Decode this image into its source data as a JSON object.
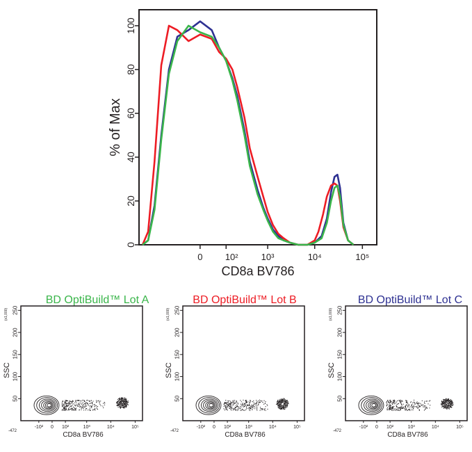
{
  "colors": {
    "lot_a": "#3ab54a",
    "lot_b": "#ed1c24",
    "lot_c": "#2e3192",
    "axis": "#231f20",
    "contour": "#231f20"
  },
  "chart_data": [
    {
      "type": "line",
      "subtype": "histogram-overlay",
      "title": "",
      "xlabel": "CD8a BV786",
      "ylabel": "% of Max",
      "x_scale": "biexponential",
      "x_ticks": [
        "0",
        "10²",
        "10³",
        "10⁴",
        "10⁵"
      ],
      "x_tick_values": [
        0,
        100,
        1000,
        10000,
        100000
      ],
      "y_ticks": [
        "0",
        "20",
        "40",
        "60",
        "80",
        "100"
      ],
      "y_tick_values": [
        0,
        20,
        40,
        60,
        80,
        100
      ],
      "ylim": [
        0,
        100
      ],
      "grid": false,
      "legend": "none",
      "series": [
        {
          "color_key": "lot_c",
          "x": [
            -600,
            -450,
            -320,
            -220,
            -140,
            -80,
            -30,
            0,
            30,
            60,
            100,
            150,
            200,
            300,
            400,
            600,
            800,
            1000,
            1300,
            1700,
            2200,
            3000,
            4500,
            7000,
            10000,
            14000,
            18000,
            22000,
            26000,
            30000,
            34000,
            40000,
            50000,
            65000
          ],
          "y": [
            0,
            2,
            18,
            50,
            80,
            95,
            98,
            102,
            98,
            90,
            84,
            76,
            68,
            52,
            38,
            25,
            17,
            12,
            7,
            4,
            2,
            1,
            0,
            0,
            1,
            4,
            12,
            24,
            31,
            32,
            26,
            10,
            2,
            0
          ]
        },
        {
          "color_key": "lot_b",
          "x": [
            -600,
            -450,
            -320,
            -220,
            -140,
            -80,
            -30,
            0,
            30,
            60,
            100,
            150,
            200,
            300,
            400,
            600,
            800,
            1000,
            1300,
            1700,
            2200,
            3000,
            4500,
            7000,
            10000,
            12000,
            15000,
            18000,
            22000,
            26000,
            30000,
            34000,
            40000,
            50000,
            65000
          ],
          "y": [
            0,
            6,
            38,
            82,
            100,
            98,
            93,
            96,
            94,
            88,
            85,
            80,
            72,
            58,
            44,
            31,
            22,
            15,
            9,
            5,
            3,
            1,
            0,
            0,
            2,
            6,
            14,
            22,
            27,
            28,
            27,
            20,
            8,
            2,
            0
          ]
        },
        {
          "color_key": "lot_a",
          "x": [
            -600,
            -450,
            -320,
            -220,
            -140,
            -80,
            -30,
            0,
            30,
            60,
            100,
            150,
            200,
            300,
            400,
            600,
            800,
            1000,
            1300,
            1700,
            2200,
            3000,
            4500,
            7000,
            10000,
            14000,
            18000,
            22000,
            26000,
            30000,
            34000,
            40000,
            50000,
            65000
          ],
          "y": [
            0,
            2,
            16,
            48,
            78,
            93,
            100,
            97,
            95,
            90,
            84,
            75,
            66,
            50,
            36,
            23,
            16,
            11,
            6,
            3,
            2,
            1,
            0,
            0,
            1,
            3,
            10,
            20,
            26,
            27,
            22,
            9,
            2,
            0
          ]
        }
      ]
    },
    {
      "type": "contour",
      "title": "BD OptiBuild™ Lot A",
      "title_color_key": "lot_a",
      "xlabel": "CD8a BV786",
      "ylabel": "SSC",
      "y_multiplier": "(x1,000)",
      "x_ticks": [
        "-472",
        "-10²",
        "0",
        "10²",
        "10³",
        "10⁴",
        "10⁵"
      ],
      "y_ticks": [
        "50",
        "100",
        "150",
        "200",
        "250"
      ],
      "y_tick_values": [
        50,
        100,
        150,
        200,
        250
      ],
      "ylim": [
        0,
        260
      ],
      "populations": [
        {
          "x": 0,
          "y": 35
        },
        {
          "x": 30000,
          "y": 40
        }
      ]
    },
    {
      "type": "contour",
      "title": "BD OptiBuild™ Lot B",
      "title_color_key": "lot_b",
      "xlabel": "CD8a BV786",
      "ylabel": "SSC",
      "y_multiplier": "(x1,000)",
      "x_ticks": [
        "-472",
        "-10²",
        "0",
        "10²",
        "10³",
        "10⁴",
        "10⁵"
      ],
      "y_ticks": [
        "50",
        "100",
        "150",
        "200",
        "250"
      ],
      "y_tick_values": [
        50,
        100,
        150,
        200,
        250
      ],
      "ylim": [
        0,
        260
      ],
      "populations": [
        {
          "x": 0,
          "y": 35
        },
        {
          "x": 25000,
          "y": 38
        }
      ]
    },
    {
      "type": "contour",
      "title": "BD OptiBuild™ Lot C",
      "title_color_key": "lot_c",
      "xlabel": "CD8a BV786",
      "ylabel": "SSC",
      "y_multiplier": "(x1,000)",
      "x_ticks": [
        "-472",
        "-10²",
        "0",
        "10²",
        "10³",
        "10⁴",
        "10⁵"
      ],
      "y_ticks": [
        "50",
        "100",
        "150",
        "200",
        "250"
      ],
      "y_tick_values": [
        50,
        100,
        150,
        200,
        250
      ],
      "ylim": [
        0,
        260
      ],
      "populations": [
        {
          "x": 0,
          "y": 35
        },
        {
          "x": 30000,
          "y": 38
        }
      ]
    }
  ]
}
